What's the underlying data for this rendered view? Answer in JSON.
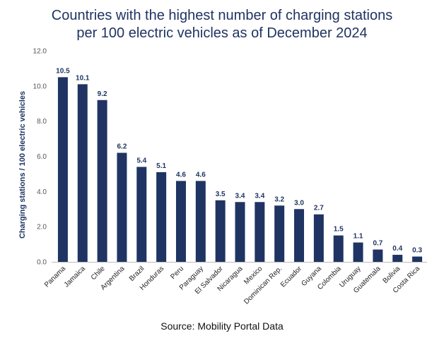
{
  "chart_data": {
    "type": "bar",
    "title_lines": [
      "Countries with the highest number of charging stations",
      "per 100 electric vehicles as of December 2024"
    ],
    "ylabel": "Charging stations / 100 electric vehicles",
    "xlabel": "",
    "ylim": [
      0,
      12
    ],
    "yticks": [
      "0.0",
      "2.0",
      "4.0",
      "6.0",
      "8.0",
      "10.0",
      "12.0"
    ],
    "categories": [
      "Panama",
      "Jamaica",
      "Chile",
      "Argentina",
      "Brazil",
      "Honduras",
      "Peru",
      "Paraguay",
      "El Salvador",
      "Nicaragua",
      "Mexico",
      "Dominican Rep.",
      "Ecuador",
      "Guyana",
      "Colombia",
      "Uruguay",
      "Guatemala",
      "Bolivia",
      "Costa Rica"
    ],
    "values": [
      10.5,
      10.1,
      9.2,
      6.2,
      5.4,
      5.1,
      4.6,
      4.6,
      3.5,
      3.4,
      3.4,
      3.2,
      3.0,
      2.7,
      1.5,
      1.1,
      0.7,
      0.4,
      0.3
    ],
    "value_labels": [
      "10.5",
      "10.1",
      "9.2",
      "6.2",
      "5.4",
      "5.1",
      "4.6",
      "4.6",
      "3.5",
      "3.4",
      "3.4",
      "3.2",
      "3.0",
      "2.7",
      "1.5",
      "1.1",
      "0.7",
      "0.4",
      "0.3"
    ],
    "bar_color": "#1f3462",
    "grid": false,
    "legend": "none"
  },
  "source": "Source: Mobility Portal Data"
}
